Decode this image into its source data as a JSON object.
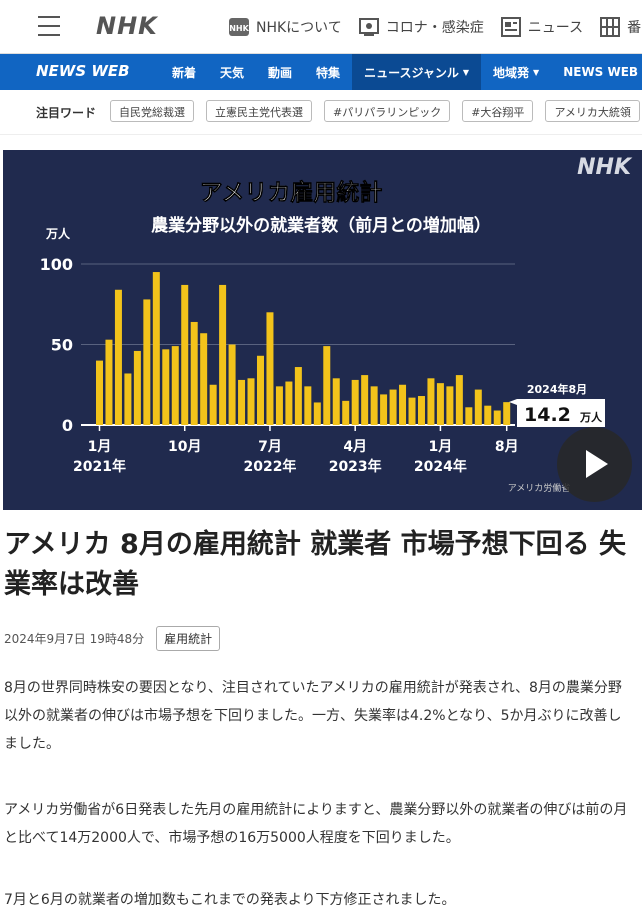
{
  "header": {
    "logo": "NHK",
    "links": [
      {
        "icon": "nhk-badge-icon",
        "label": "NHKについて"
      },
      {
        "icon": "virus-icon",
        "label": "コロナ・感染症"
      },
      {
        "icon": "newspaper-icon",
        "label": "ニュース"
      },
      {
        "icon": "grid-icon",
        "label": "番"
      }
    ]
  },
  "nav": {
    "brand": "NEWS WEB",
    "items": [
      {
        "label": "新着"
      },
      {
        "label": "天気"
      },
      {
        "label": "動画"
      },
      {
        "label": "特集"
      },
      {
        "label": "ニュースジャンル",
        "dropdown": true,
        "active": true
      },
      {
        "label": "地域発",
        "dropdown": true
      },
      {
        "label": "NEWS WEB EA"
      }
    ]
  },
  "keywords": {
    "label": "注目ワード",
    "items": [
      "自民党総裁選",
      "立憲民主党代表選",
      "#パリパラリンピック",
      "#大谷翔平",
      "アメリカ大統領"
    ]
  },
  "hero": {
    "logo": "NHK",
    "source": "アメリカ労働省"
  },
  "chart_data": {
    "type": "bar",
    "title": "アメリカ雇用統計",
    "subtitle": "農業分野以外の就業者数（前月との増加幅）",
    "ylabel": "万人",
    "ylim": [
      0,
      100
    ],
    "yticks": [
      "0",
      "50",
      "100"
    ],
    "xtick_labels": [
      {
        "index": 0,
        "month": "1月",
        "year": "2021年"
      },
      {
        "index": 9,
        "month": "10月",
        "year": ""
      },
      {
        "index": 18,
        "month": "7月",
        "year": "2022年"
      },
      {
        "index": 27,
        "month": "4月",
        "year": "2023年"
      },
      {
        "index": 36,
        "month": "1月",
        "year": "2024年"
      },
      {
        "index": 43,
        "month": "8月",
        "year": ""
      }
    ],
    "values": [
      40,
      53,
      84,
      32,
      46,
      78,
      95,
      47,
      49,
      87,
      64,
      57,
      25,
      87,
      50,
      28,
      29,
      43,
      70,
      24,
      27,
      36,
      24,
      14,
      49,
      29,
      15,
      28,
      31,
      24,
      19,
      22,
      25,
      17,
      18,
      29,
      26,
      24,
      31,
      11,
      22,
      12,
      9,
      14.2
    ],
    "annotation": {
      "period": "2024年8月",
      "value": "14.2",
      "unit": "万人"
    }
  },
  "colors": {
    "bar": "#f2c31b",
    "last_bar": "#f2c31b",
    "nav_bg": "#1165c2",
    "hero_bg": "#202a4e"
  },
  "article": {
    "title": "アメリカ 8月の雇用統計 就業者 市場予想下回る 失業率は改善",
    "date": "2024年9月7日 19時48分",
    "tag": "雇用統計",
    "paragraphs": [
      "8月の世界同時株安の要因となり、注目されていたアメリカの雇用統計が発表され、8月の農業分野以外の就業者の伸びは市場予想を下回りました。一方、失業率は4.2%となり、5か月ぶりに改善しました。",
      "アメリカ労働省が6日発表した先月の雇用統計によりますと、農業分野以外の就業者の伸びは前の月と比べて14万2000人で、市場予想の16万5000人程度を下回りました。",
      "7月と6月の就業者の増加数もこれまでの発表より下方修正されました。"
    ]
  }
}
